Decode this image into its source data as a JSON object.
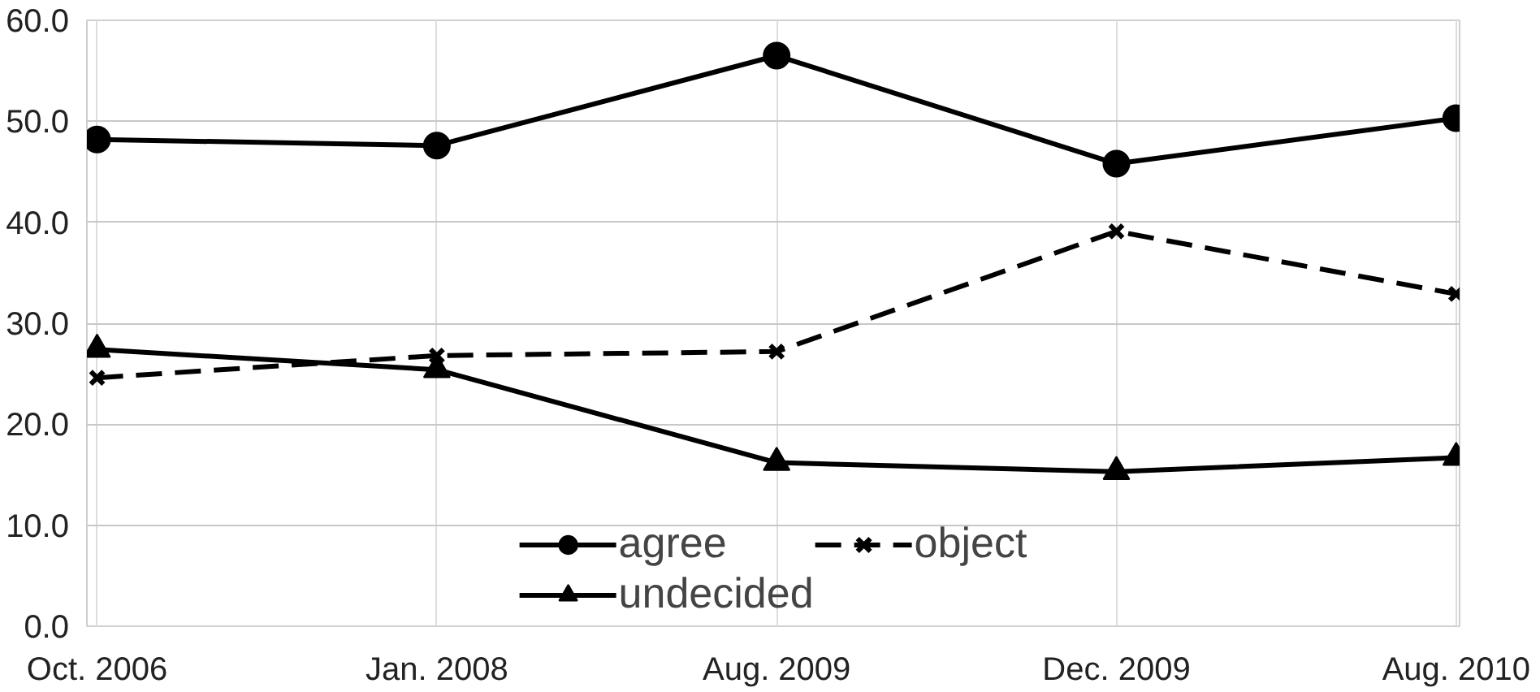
{
  "chart_data": {
    "type": "line",
    "categories": [
      "Oct. 2006",
      "Jan. 2008",
      "Aug. 2009",
      "Dec. 2009",
      "Aug. 2010"
    ],
    "series": [
      {
        "name": "agree",
        "color": "#000000",
        "marker": "circle",
        "line_style": "solid",
        "values": [
          48.2,
          47.6,
          56.5,
          45.8,
          50.3
        ]
      },
      {
        "name": "undecided",
        "color": "#000000",
        "marker": "triangle",
        "line_style": "solid",
        "values": [
          27.4,
          25.4,
          16.2,
          15.3,
          16.7
        ]
      },
      {
        "name": "object",
        "color": "#000000",
        "marker": "cross",
        "line_style": "dashed",
        "values": [
          24.6,
          26.8,
          27.2,
          39.1,
          32.9
        ]
      }
    ],
    "ylim": [
      0,
      60
    ],
    "yticks": [
      {
        "value": 0,
        "label": "0.0"
      },
      {
        "value": 10,
        "label": "10.0"
      },
      {
        "value": 20,
        "label": "20.0"
      },
      {
        "value": 30,
        "label": "30.0"
      },
      {
        "value": 40,
        "label": "40.0"
      },
      {
        "value": 50,
        "label": "50.0"
      },
      {
        "value": 60,
        "label": "60.0"
      }
    ],
    "grid": true,
    "legend": "bottom"
  }
}
